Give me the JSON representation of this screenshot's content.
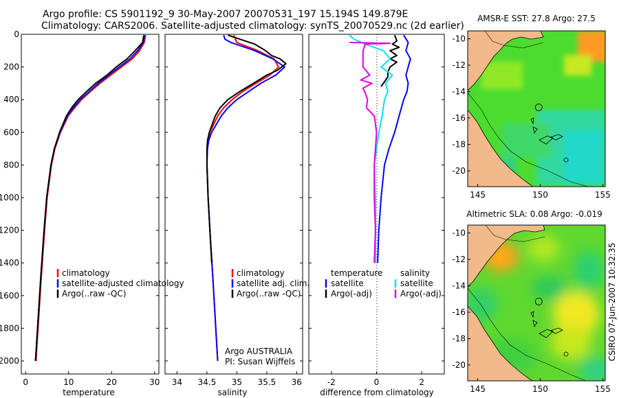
{
  "header": {
    "line1": "Argo profile: CS 5901192_9 30-May-2007 20070531_197 15.194S 149.879E",
    "line2": "Climatology: CARS2006. Satellite-adjusted climatology: synTS_20070529.nc (2d earlier)"
  },
  "side_label": "CSIRO 07-Jun-2007 10:32:35",
  "colors": {
    "red": "#ff0000",
    "blue": "#0000ff",
    "black": "#000000",
    "cyan": "#00e5ee",
    "magenta": "#e000e0",
    "land": "#f2b98a"
  },
  "chart_data": [
    {
      "type": "line",
      "id": "temperature",
      "xlabel": "temperature",
      "xlim": [
        -1,
        31
      ],
      "ylim": [
        2080,
        0
      ],
      "xticks": [
        0,
        10,
        20,
        30
      ],
      "yticks": [
        0,
        200,
        400,
        600,
        800,
        1000,
        1200,
        1400,
        1600,
        1800,
        2000
      ],
      "legend": [
        "climatology",
        "satellite-adjusted climatology",
        "Argo(..raw -QC)"
      ],
      "series": [
        {
          "name": "climatology",
          "color": "#ff0000",
          "depth": [
            5,
            50,
            100,
            150,
            200,
            250,
            300,
            350,
            400,
            450,
            500,
            600,
            700,
            800,
            1000,
            1200,
            1500,
            2000
          ],
          "values": [
            27.9,
            27.6,
            26.5,
            24.8,
            22.3,
            19.8,
            17.3,
            15.1,
            13.0,
            11.4,
            9.9,
            8.1,
            6.8,
            6.0,
            5.0,
            4.4,
            3.6,
            2.4
          ]
        },
        {
          "name": "satellite",
          "color": "#0000ff",
          "depth": [
            5,
            50,
            100,
            150,
            200,
            250,
            300,
            350,
            400,
            450,
            500,
            600,
            700,
            800,
            1000,
            1200,
            1500,
            2000
          ],
          "values": [
            27.7,
            27.4,
            26.1,
            24.3,
            21.8,
            19.3,
            16.9,
            14.8,
            12.7,
            11.1,
            9.7,
            8.0,
            6.7,
            5.9,
            4.9,
            4.3,
            3.5,
            2.3
          ]
        },
        {
          "name": "argo",
          "color": "#000000",
          "depth": [
            5,
            50,
            100,
            150,
            200,
            250,
            300,
            350,
            400,
            450,
            500,
            600,
            700,
            800,
            1000,
            1200,
            1500,
            2000
          ],
          "values": [
            27.5,
            27.2,
            25.5,
            23.6,
            21.1,
            18.9,
            16.3,
            14.2,
            12.2,
            10.7,
            9.5,
            7.9,
            6.7,
            5.9,
            4.9,
            4.3,
            3.5,
            2.3
          ]
        }
      ]
    },
    {
      "type": "line",
      "id": "salinity",
      "xlabel": "salinity",
      "xlim": [
        33.8,
        36.1
      ],
      "ylim": [
        2080,
        0
      ],
      "xticks": [
        34,
        34.5,
        35,
        35.5,
        36
      ],
      "legend": [
        "climatology",
        "satellite adj. clim.",
        "Argo(..raw -QC)"
      ],
      "annotation": [
        "Argo AUSTRALIA",
        "PI: Susan Wijffels"
      ],
      "series": [
        {
          "name": "climatology",
          "color": "#ff0000",
          "depth": [
            5,
            50,
            100,
            150,
            200,
            250,
            300,
            350,
            400,
            450,
            500,
            600,
            650,
            700,
            800,
            1000,
            1200,
            1500,
            2000
          ],
          "values": [
            34.95,
            35.0,
            35.35,
            35.62,
            35.7,
            35.55,
            35.32,
            35.1,
            34.92,
            34.78,
            34.68,
            34.55,
            34.52,
            34.5,
            34.5,
            34.52,
            34.55,
            34.6,
            34.68
          ]
        },
        {
          "name": "satellite",
          "color": "#0000ff",
          "depth": [
            5,
            30,
            50,
            100,
            150,
            200,
            250,
            300,
            350,
            400,
            450,
            500,
            600,
            650,
            700,
            800,
            1000,
            1200,
            1500,
            2000
          ],
          "values": [
            34.78,
            34.8,
            34.9,
            35.3,
            35.6,
            35.8,
            35.65,
            35.4,
            35.2,
            35.0,
            34.85,
            34.74,
            34.58,
            34.53,
            34.51,
            34.5,
            34.52,
            34.55,
            34.6,
            34.68
          ]
        },
        {
          "name": "argo",
          "color": "#000000",
          "depth": [
            5,
            30,
            60,
            100,
            130,
            150,
            180,
            220,
            250,
            300,
            350,
            400,
            450,
            500,
            600,
            650,
            700,
            800,
            1000,
            1200,
            1400
          ],
          "values": [
            34.85,
            35.05,
            35.3,
            35.48,
            35.58,
            35.72,
            35.82,
            35.68,
            35.5,
            35.28,
            35.05,
            34.85,
            34.72,
            34.64,
            34.54,
            34.51,
            34.5,
            34.5,
            34.52,
            34.55,
            34.58
          ]
        }
      ]
    },
    {
      "type": "line",
      "id": "difference",
      "xlabel": "difference from climatology",
      "xlim": [
        -3,
        3
      ],
      "ylim": [
        2080,
        0
      ],
      "xticks": [
        -2,
        0,
        2
      ],
      "legend_left": [
        "temperature",
        "satellite",
        "Argo(-adj)"
      ],
      "legend_right": [
        "salinity",
        "satellite",
        "Argo(-adj)"
      ],
      "series": [
        {
          "name": "temperature satellite",
          "color": "#0000ff",
          "depth": [
            5,
            50,
            100,
            150,
            200,
            250,
            300,
            350,
            400,
            500,
            600,
            700,
            800,
            1000,
            1200,
            1400
          ],
          "values": [
            1.2,
            1.4,
            1.3,
            1.5,
            1.4,
            1.3,
            1.4,
            1.35,
            1.2,
            1.0,
            0.8,
            0.55,
            0.35,
            0.2,
            0.1,
            0.05
          ]
        },
        {
          "name": "temperature Argo",
          "color": "#000000",
          "depth": [
            5,
            40,
            60,
            80,
            100,
            130,
            150,
            170,
            200,
            230,
            260,
            300,
            320
          ],
          "values": [
            0.8,
            0.9,
            0.7,
            1.0,
            0.6,
            0.9,
            0.6,
            0.9,
            0.6,
            0.5,
            0.5,
            0.3,
            0.2
          ]
        },
        {
          "name": "salinity satellite",
          "color": "#00e5ee",
          "depth": [
            5,
            30,
            60,
            100,
            150,
            200,
            250,
            300,
            350,
            400,
            500,
            600,
            700,
            800,
            1000,
            1400
          ],
          "values": [
            -1.2,
            -1.0,
            -0.5,
            0.3,
            0.6,
            0.2,
            0.7,
            0.4,
            0.5,
            0.35,
            0.25,
            0.1,
            0.0,
            -0.1,
            -0.05,
            -0.05
          ]
        },
        {
          "name": "salinity Argo",
          "color": "#e000e0",
          "depth": [
            50,
            55,
            60,
            100,
            200,
            250,
            280,
            300,
            330,
            360,
            400,
            450,
            500,
            600,
            700,
            800,
            1000,
            1200,
            1400
          ],
          "values": [
            -1.2,
            0.6,
            -0.5,
            -0.6,
            -0.6,
            -0.3,
            -0.7,
            -0.2,
            -0.6,
            -0.5,
            -0.4,
            -0.45,
            -0.1,
            0.0,
            -0.05,
            -0.1,
            -0.1,
            -0.05,
            -0.1
          ]
        }
      ]
    },
    {
      "type": "heatmap",
      "id": "sst",
      "title": "AMSR-E SST: 27.8 Argo: 27.5",
      "xticks": [
        145,
        150,
        155
      ],
      "yticks": [
        -10,
        -12,
        -14,
        -16,
        -18,
        -20
      ],
      "xlim": [
        144.2,
        155.2
      ],
      "ylim": [
        -21.2,
        -9.4
      ],
      "argo_position": [
        149.88,
        -15.19
      ]
    },
    {
      "type": "heatmap",
      "id": "sla",
      "title": "Altimetric SLA: 0.08 Argo: -0.019",
      "xticks": [
        145,
        150,
        155
      ],
      "yticks": [
        -10,
        -12,
        -14,
        -16,
        -18,
        -20
      ],
      "xlim": [
        144.2,
        155.2
      ],
      "ylim": [
        -21.2,
        -9.4
      ],
      "argo_position": [
        149.88,
        -15.19
      ]
    }
  ]
}
